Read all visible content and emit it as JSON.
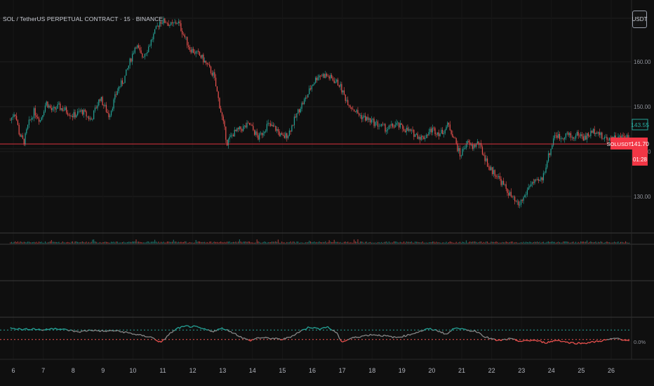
{
  "header": {
    "symbol_title": "SOL / TetherUS PERPETUAL CONTRACT · 15 · BINANCE",
    "currency_button": "USDT"
  },
  "price_scale": {
    "last_price_label": "143.55",
    "symbol_tag": "SOLUSDT.P",
    "marker_price": "141.70",
    "countdown": "01:28",
    "indicator_axis_label": "0.0%"
  },
  "colors": {
    "background": "#0f0f0f",
    "up": "#26a69a",
    "down": "#ef5350",
    "neutral": "#8a8a8a",
    "price_line": "#f23645",
    "grid": "#1f1f1f"
  },
  "chart_data": [
    {
      "type": "candlestick",
      "title": "",
      "x_tick_labels": [
        "6",
        "7",
        "8",
        "9",
        "10",
        "11",
        "12",
        "13",
        "14",
        "15",
        "16",
        "17",
        "18",
        "19",
        "20",
        "21",
        "22",
        "23",
        "24",
        "25",
        "26"
      ],
      "y_tick_labels": [
        "130.00",
        "140.00",
        "150.00",
        "160.00"
      ],
      "ylim": [
        126,
        172
      ],
      "grid": true,
      "horizontal_line": 141.7,
      "close_path": [
        [
          5.9,
          147
        ],
        [
          6.05,
          149
        ],
        [
          6.2,
          144
        ],
        [
          6.35,
          142
        ],
        [
          6.5,
          146
        ],
        [
          6.7,
          149
        ],
        [
          6.9,
          147
        ],
        [
          7.1,
          151
        ],
        [
          7.3,
          149
        ],
        [
          7.5,
          150
        ],
        [
          7.8,
          149
        ],
        [
          8.0,
          148
        ],
        [
          8.3,
          149
        ],
        [
          8.6,
          147
        ],
        [
          8.9,
          152
        ],
        [
          9.2,
          148
        ],
        [
          9.5,
          154
        ],
        [
          9.7,
          156
        ],
        [
          9.9,
          160
        ],
        [
          10.1,
          164
        ],
        [
          10.3,
          161
        ],
        [
          10.5,
          163
        ],
        [
          10.7,
          166
        ],
        [
          10.9,
          169
        ],
        [
          11.1,
          169
        ],
        [
          11.3,
          168
        ],
        [
          11.5,
          169
        ],
        [
          11.7,
          166
        ],
        [
          11.9,
          163
        ],
        [
          12.1,
          162
        ],
        [
          12.3,
          161
        ],
        [
          12.5,
          159
        ],
        [
          12.7,
          157
        ],
        [
          12.85,
          152
        ],
        [
          13.0,
          147
        ],
        [
          13.15,
          142
        ],
        [
          13.35,
          144
        ],
        [
          13.6,
          145
        ],
        [
          13.9,
          146
        ],
        [
          14.2,
          143
        ],
        [
          14.5,
          146
        ],
        [
          14.8,
          145
        ],
        [
          15.0,
          143
        ],
        [
          15.2,
          144
        ],
        [
          15.4,
          147
        ],
        [
          15.6,
          150
        ],
        [
          15.8,
          152
        ],
        [
          16.0,
          155
        ],
        [
          16.2,
          157
        ],
        [
          16.45,
          157
        ],
        [
          16.7,
          156
        ],
        [
          16.9,
          155
        ],
        [
          17.1,
          152
        ],
        [
          17.3,
          150
        ],
        [
          17.6,
          148
        ],
        [
          17.9,
          147
        ],
        [
          18.2,
          146
        ],
        [
          18.5,
          145
        ],
        [
          18.8,
          146
        ],
        [
          19.1,
          145
        ],
        [
          19.4,
          144
        ],
        [
          19.7,
          143
        ],
        [
          20.0,
          145
        ],
        [
          20.3,
          144
        ],
        [
          20.55,
          146
        ],
        [
          20.75,
          143
        ],
        [
          20.95,
          139
        ],
        [
          21.15,
          142
        ],
        [
          21.35,
          141
        ],
        [
          21.55,
          142
        ],
        [
          21.75,
          139
        ],
        [
          21.95,
          136
        ],
        [
          22.15,
          135
        ],
        [
          22.35,
          133
        ],
        [
          22.55,
          131
        ],
        [
          22.75,
          129
        ],
        [
          22.9,
          128
        ],
        [
          23.1,
          130
        ],
        [
          23.3,
          133
        ],
        [
          23.5,
          133
        ],
        [
          23.7,
          134
        ],
        [
          23.85,
          138
        ],
        [
          24.0,
          141
        ],
        [
          24.1,
          144
        ],
        [
          24.3,
          143
        ],
        [
          24.5,
          144
        ],
        [
          24.7,
          143
        ],
        [
          24.9,
          144
        ],
        [
          25.1,
          143
        ],
        [
          25.3,
          144
        ],
        [
          25.5,
          145
        ],
        [
          25.7,
          143
        ],
        [
          25.9,
          143
        ],
        [
          26.1,
          143
        ],
        [
          26.3,
          143
        ],
        [
          26.5,
          143.55
        ],
        [
          26.65,
          142.5
        ]
      ]
    },
    {
      "type": "line",
      "title": "",
      "x_tick_labels": [
        "6",
        "7",
        "8",
        "9",
        "10",
        "11",
        "12",
        "13",
        "14",
        "15",
        "16",
        "17",
        "18",
        "19",
        "20",
        "21",
        "22",
        "23",
        "24",
        "25",
        "26"
      ],
      "y_tick_labels": [
        "0.0%"
      ],
      "ylim": [
        0,
        1
      ],
      "upper_threshold": 0.66,
      "lower_threshold": 0.36,
      "values": [
        [
          5.9,
          0.74
        ],
        [
          6.3,
          0.68
        ],
        [
          6.7,
          0.7
        ],
        [
          7.0,
          0.66
        ],
        [
          7.4,
          0.72
        ],
        [
          7.8,
          0.66
        ],
        [
          8.2,
          0.6
        ],
        [
          8.6,
          0.66
        ],
        [
          9.0,
          0.62
        ],
        [
          9.4,
          0.64
        ],
        [
          9.8,
          0.58
        ],
        [
          10.2,
          0.5
        ],
        [
          10.6,
          0.44
        ],
        [
          10.95,
          0.26
        ],
        [
          11.2,
          0.52
        ],
        [
          11.5,
          0.72
        ],
        [
          11.8,
          0.78
        ],
        [
          12.1,
          0.76
        ],
        [
          12.4,
          0.68
        ],
        [
          12.7,
          0.62
        ],
        [
          13.0,
          0.72
        ],
        [
          13.3,
          0.6
        ],
        [
          13.6,
          0.45
        ],
        [
          13.9,
          0.32
        ],
        [
          14.2,
          0.42
        ],
        [
          14.6,
          0.4
        ],
        [
          15.0,
          0.36
        ],
        [
          15.3,
          0.46
        ],
        [
          15.6,
          0.62
        ],
        [
          15.9,
          0.76
        ],
        [
          16.2,
          0.7
        ],
        [
          16.5,
          0.76
        ],
        [
          16.8,
          0.58
        ],
        [
          17.0,
          0.28
        ],
        [
          17.3,
          0.4
        ],
        [
          17.6,
          0.46
        ],
        [
          18.0,
          0.52
        ],
        [
          18.4,
          0.48
        ],
        [
          18.8,
          0.42
        ],
        [
          19.2,
          0.5
        ],
        [
          19.6,
          0.62
        ],
        [
          19.9,
          0.7
        ],
        [
          20.2,
          0.64
        ],
        [
          20.5,
          0.52
        ],
        [
          20.8,
          0.76
        ],
        [
          21.1,
          0.66
        ],
        [
          21.5,
          0.62
        ],
        [
          21.8,
          0.44
        ],
        [
          22.2,
          0.32
        ],
        [
          22.6,
          0.38
        ],
        [
          23.0,
          0.3
        ],
        [
          23.4,
          0.34
        ],
        [
          23.8,
          0.26
        ],
        [
          24.2,
          0.34
        ],
        [
          24.6,
          0.26
        ],
        [
          25.0,
          0.24
        ],
        [
          25.4,
          0.28
        ],
        [
          25.8,
          0.34
        ],
        [
          26.2,
          0.4
        ],
        [
          26.65,
          0.3
        ]
      ]
    }
  ]
}
